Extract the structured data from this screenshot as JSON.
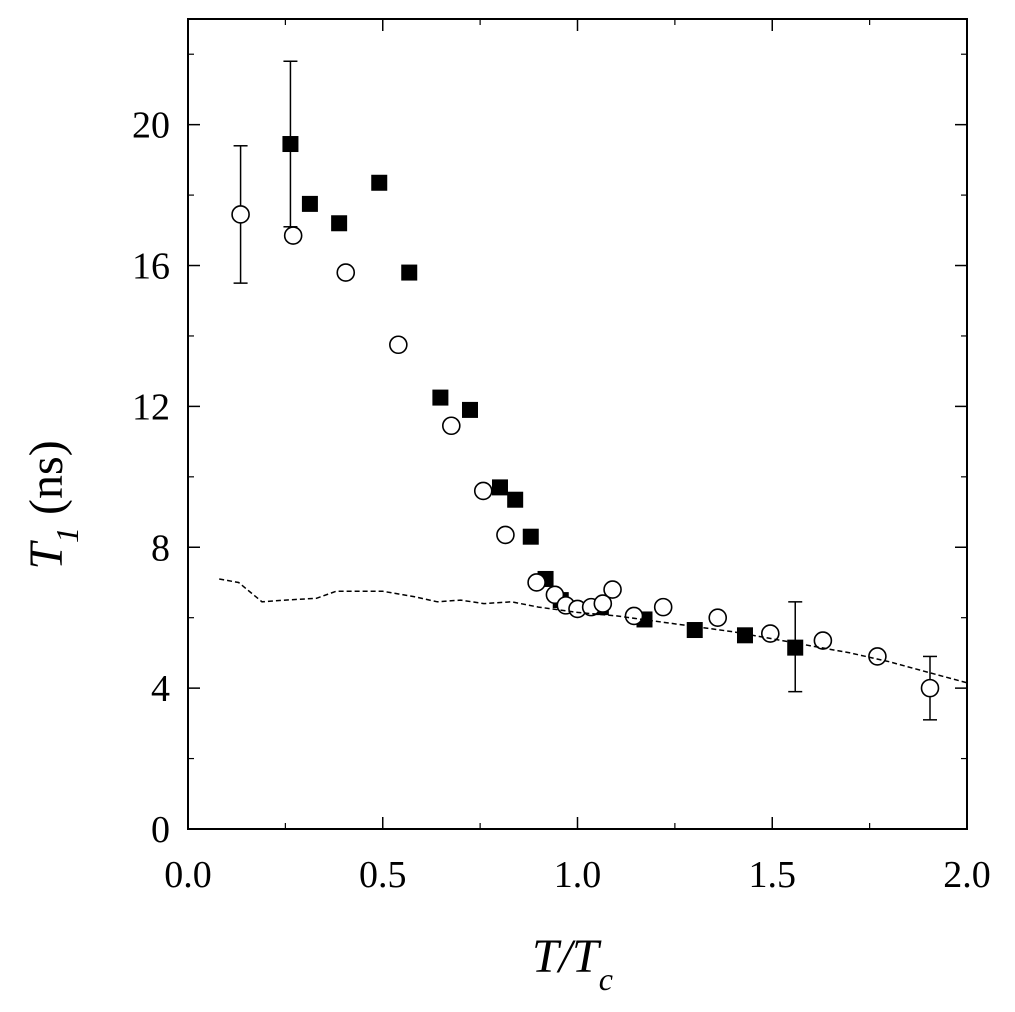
{
  "chart_data": {
    "type": "scatter",
    "title": "",
    "xlabel": {
      "main": "T/T",
      "sub": "c"
    },
    "ylabel": {
      "main": "T",
      "sub": "1",
      "unit": " (ns)"
    },
    "xlim": [
      0.0,
      2.0
    ],
    "ylim": [
      0,
      23
    ],
    "x_ticks": [
      0.0,
      0.5,
      1.0,
      1.5,
      2.0
    ],
    "x_tick_labels": [
      "0.0",
      "0.5",
      "1.0",
      "1.5",
      "2.0"
    ],
    "y_ticks": [
      0,
      4,
      8,
      12,
      16,
      20
    ],
    "y_tick_labels": [
      "0",
      "4",
      "8",
      "12",
      "16",
      "20"
    ],
    "grid": false,
    "series": [
      {
        "marker": "filled-square",
        "color": "#000000",
        "points": [
          {
            "x": 0.263,
            "y": 19.45,
            "err": [
              17.1,
              21.8
            ]
          },
          {
            "x": 0.313,
            "y": 17.75
          },
          {
            "x": 0.388,
            "y": 17.2
          },
          {
            "x": 0.491,
            "y": 18.35
          },
          {
            "x": 0.568,
            "y": 15.8
          },
          {
            "x": 0.648,
            "y": 12.25
          },
          {
            "x": 0.724,
            "y": 11.9
          },
          {
            "x": 0.801,
            "y": 9.7
          },
          {
            "x": 0.84,
            "y": 9.35
          },
          {
            "x": 0.88,
            "y": 8.3
          },
          {
            "x": 0.918,
            "y": 7.1
          },
          {
            "x": 0.957,
            "y": 6.5
          },
          {
            "x": 1.06,
            "y": 6.3
          },
          {
            "x": 1.172,
            "y": 5.95
          },
          {
            "x": 1.301,
            "y": 5.65
          },
          {
            "x": 1.43,
            "y": 5.5
          },
          {
            "x": 1.559,
            "y": 5.15,
            "err": [
              3.9,
              6.45
            ]
          }
        ]
      },
      {
        "marker": "open-circle",
        "color": "#000000",
        "points": [
          {
            "x": 0.135,
            "y": 17.45,
            "err": [
              15.5,
              19.4
            ]
          },
          {
            "x": 0.27,
            "y": 16.85
          },
          {
            "x": 0.405,
            "y": 15.8
          },
          {
            "x": 0.54,
            "y": 13.75
          },
          {
            "x": 0.676,
            "y": 11.45
          },
          {
            "x": 0.758,
            "y": 9.6
          },
          {
            "x": 0.815,
            "y": 8.35
          },
          {
            "x": 0.895,
            "y": 7.0
          },
          {
            "x": 0.942,
            "y": 6.65
          },
          {
            "x": 0.97,
            "y": 6.35
          },
          {
            "x": 1.0,
            "y": 6.25
          },
          {
            "x": 1.035,
            "y": 6.3
          },
          {
            "x": 1.065,
            "y": 6.4
          },
          {
            "x": 1.09,
            "y": 6.8
          },
          {
            "x": 1.145,
            "y": 6.05
          },
          {
            "x": 1.22,
            "y": 6.3
          },
          {
            "x": 1.36,
            "y": 6.0
          },
          {
            "x": 1.495,
            "y": 5.55
          },
          {
            "x": 1.63,
            "y": 5.35
          },
          {
            "x": 1.77,
            "y": 4.9
          },
          {
            "x": 1.905,
            "y": 4.0,
            "err": [
              3.1,
              4.9
            ]
          }
        ]
      },
      {
        "marker": "dashed-line",
        "color": "#000000",
        "points": [
          {
            "x": 0.08,
            "y": 7.1
          },
          {
            "x": 0.13,
            "y": 7.0
          },
          {
            "x": 0.19,
            "y": 6.45
          },
          {
            "x": 0.25,
            "y": 6.5
          },
          {
            "x": 0.33,
            "y": 6.55
          },
          {
            "x": 0.38,
            "y": 6.75
          },
          {
            "x": 0.5,
            "y": 6.75
          },
          {
            "x": 0.58,
            "y": 6.6
          },
          {
            "x": 0.64,
            "y": 6.45
          },
          {
            "x": 0.7,
            "y": 6.5
          },
          {
            "x": 0.76,
            "y": 6.4
          },
          {
            "x": 0.83,
            "y": 6.45
          },
          {
            "x": 0.9,
            "y": 6.3
          },
          {
            "x": 1.0,
            "y": 6.15
          },
          {
            "x": 1.1,
            "y": 6.05
          },
          {
            "x": 1.2,
            "y": 5.9
          },
          {
            "x": 1.3,
            "y": 5.75
          },
          {
            "x": 1.4,
            "y": 5.6
          },
          {
            "x": 1.5,
            "y": 5.4
          },
          {
            "x": 1.6,
            "y": 5.2
          },
          {
            "x": 1.7,
            "y": 5.0
          },
          {
            "x": 1.8,
            "y": 4.75
          },
          {
            "x": 1.9,
            "y": 4.45
          },
          {
            "x": 2.0,
            "y": 4.15
          }
        ]
      }
    ]
  }
}
